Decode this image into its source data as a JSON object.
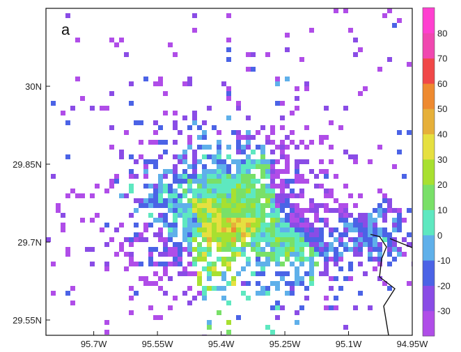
{
  "panel_label": "a",
  "x_axis": {
    "ticks": [
      "95.7W",
      "95.55W",
      "95.4W",
      "95.25W",
      "95.1W",
      "94.95W"
    ],
    "range": [
      -95.8,
      -94.95
    ]
  },
  "y_axis": {
    "ticks": [
      "30N",
      "29.85N",
      "29.7N",
      "29.55N"
    ],
    "range": [
      29.52,
      30.18
    ]
  },
  "colorbar": {
    "tick_labels": [
      "80",
      "70",
      "60",
      "50",
      "40",
      "30",
      "20",
      "10",
      "0",
      "-10",
      "-20",
      "-30"
    ],
    "colors": [
      "#b04de8",
      "#8a4ce6",
      "#4b63e6",
      "#5fb0ea",
      "#5ee8c0",
      "#79e068",
      "#a8e030",
      "#e6e040",
      "#e6b03a",
      "#ee8a30",
      "#f04848",
      "#f048b0",
      "#ff40d0"
    ]
  },
  "chart_data": {
    "type": "heatmap",
    "title": "",
    "xlabel": "",
    "ylabel": "",
    "x_ticks": [
      "95.7W",
      "95.55W",
      "95.4W",
      "95.25W",
      "95.1W",
      "94.95W"
    ],
    "y_ticks": [
      "30N",
      "29.85N",
      "29.7N",
      "29.55N"
    ],
    "xlim": [
      -95.8,
      -94.95
    ],
    "ylim": [
      29.52,
      30.18
    ],
    "value_range": [
      -40,
      90
    ],
    "legend": "colorbar-right",
    "grid": false,
    "regions": [
      {
        "lon": -95.42,
        "lat": 29.82,
        "value": 10
      },
      {
        "lon": -95.35,
        "lat": 29.78,
        "value": 20
      },
      {
        "lon": -95.3,
        "lat": 29.72,
        "value": 15
      },
      {
        "lon": -95.5,
        "lat": 29.76,
        "value": 5
      },
      {
        "lon": -95.45,
        "lat": 29.88,
        "value": 0
      },
      {
        "lon": -95.2,
        "lat": 29.8,
        "value": -20
      },
      {
        "lon": -95.55,
        "lat": 29.7,
        "value": -15
      },
      {
        "lon": -95.6,
        "lat": 29.95,
        "value": -10
      },
      {
        "lon": -95.05,
        "lat": 29.73,
        "value": -5
      },
      {
        "lon": -95.4,
        "lat": 29.73,
        "value": 35
      },
      {
        "lon": -95.35,
        "lat": 29.75,
        "value": 45
      },
      {
        "lon": -95.42,
        "lat": 29.79,
        "value": 30
      }
    ]
  }
}
